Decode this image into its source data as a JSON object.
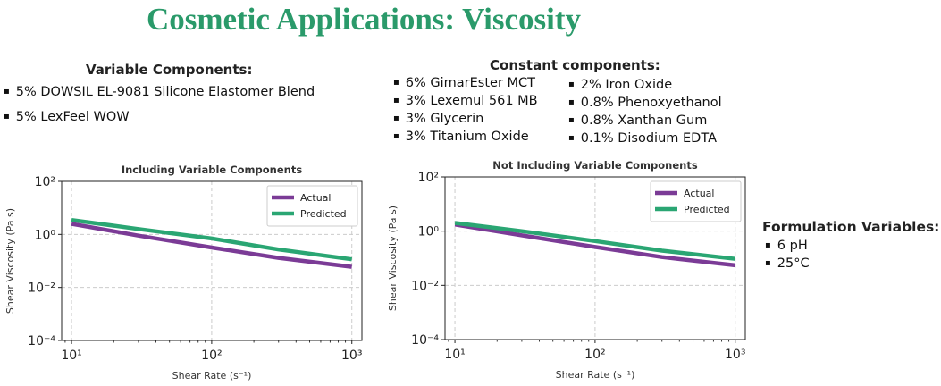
{
  "title": "Cosmetic Applications: Viscosity",
  "variable": {
    "header": "Variable Components:",
    "items": [
      "5% DOWSIL EL-9081 Silicone Elastomer Blend",
      "5% LexFeel WOW"
    ]
  },
  "constant": {
    "header": "Constant components:",
    "col1": [
      "6% GimarEster MCT",
      "3% Lexemul 561 MB",
      "3% Glycerin",
      "3% Titanium Oxide"
    ],
    "col2": [
      "2% Iron Oxide",
      "0.8% Phenoxyethanol",
      "0.8% Xanthan Gum",
      "0.1% Disodium EDTA"
    ]
  },
  "formulation": {
    "header": "Formulation Variables:",
    "items": [
      "6 pH",
      "25°C"
    ]
  },
  "colors": {
    "title": "#2a9a6a",
    "actual": "#7b3b96",
    "predicted": "#2aa673"
  },
  "chart_data": [
    {
      "type": "line",
      "title": "Including Variable Components",
      "xlabel": "Shear Rate (s⁻¹)",
      "ylabel": "Shear Viscosity (Pa s)",
      "xscale": "log",
      "yscale": "log",
      "xlim": [
        8.5,
        1180
      ],
      "ylim": [
        0.0001,
        100
      ],
      "xticks": [
        10,
        100,
        1000
      ],
      "xtick_labels": [
        "10¹",
        "10²",
        "10³"
      ],
      "yticks": [
        0.0001,
        0.01,
        1,
        100
      ],
      "ytick_labels": [
        "10⁻⁴",
        "10⁻²",
        "10⁰",
        "10²"
      ],
      "grid": true,
      "legend": "top-right",
      "x": [
        10,
        30,
        100,
        300,
        1000
      ],
      "series": [
        {
          "name": "Actual",
          "values": [
            2.5,
            0.9,
            0.32,
            0.13,
            0.06
          ]
        },
        {
          "name": "Predicted",
          "values": [
            3.5,
            1.6,
            0.7,
            0.27,
            0.115
          ]
        }
      ]
    },
    {
      "type": "line",
      "title": "Not Including Variable Components",
      "xlabel": "Shear Rate (s⁻¹)",
      "ylabel": "Shear Viscosity (Pa s)",
      "xscale": "log",
      "yscale": "log",
      "xlim": [
        8.5,
        1180
      ],
      "ylim": [
        0.0001,
        100
      ],
      "xticks": [
        10,
        100,
        1000
      ],
      "xtick_labels": [
        "10¹",
        "10²",
        "10³"
      ],
      "yticks": [
        0.0001,
        0.01,
        1,
        100
      ],
      "ytick_labels": [
        "10⁻⁴",
        "10⁻²",
        "10⁰",
        "10²"
      ],
      "grid": true,
      "legend": "top-right",
      "x": [
        10,
        30,
        100,
        300,
        1000
      ],
      "series": [
        {
          "name": "Actual",
          "values": [
            1.75,
            0.7,
            0.26,
            0.11,
            0.055
          ]
        },
        {
          "name": "Predicted",
          "values": [
            2.0,
            1.0,
            0.43,
            0.19,
            0.095
          ]
        }
      ]
    }
  ]
}
